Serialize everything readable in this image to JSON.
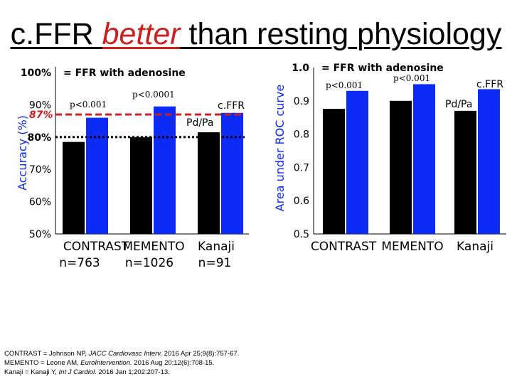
{
  "title": {
    "prefix": "c.FFR ",
    "emphasis": "better",
    "suffix": " than resting physiology",
    "emphasis_color": "#cc1f1f"
  },
  "chart_data": [
    {
      "type": "bar",
      "ylabel": "Accuracy (%)",
      "ylim": [
        50,
        100
      ],
      "yticks": [
        {
          "v": 100,
          "label": "100%"
        },
        {
          "v": 90,
          "label": "90%"
        },
        {
          "v": 80,
          "label": "80%"
        },
        {
          "v": 70,
          "label": "70%"
        },
        {
          "v": 60,
          "label": "60%"
        },
        {
          "v": 50,
          "label": "50%"
        }
      ],
      "reference_label": "= FFR with adenosine",
      "categories": [
        "CONTRAST",
        "MEMENTO",
        "Kanaji"
      ],
      "category_ns": [
        "n=763",
        "n=1026",
        "n=91"
      ],
      "series": [
        {
          "name": "Pd/Pa",
          "color": "#000000",
          "values": [
            78.5,
            80,
            81.5
          ]
        },
        {
          "name": "c.FFR",
          "color": "#0d2bf5",
          "values": [
            86,
            89.5,
            87.5
          ]
        }
      ],
      "pvalues": [
        "p<0.001",
        "p<0.0001"
      ],
      "reference_lines": [
        {
          "label": "87%",
          "value": 87,
          "color": "#cc1f1f",
          "style": "dashed"
        },
        {
          "label": "80%",
          "value": 80,
          "color": "#000000",
          "style": "dotted"
        }
      ]
    },
    {
      "type": "bar",
      "ylabel": "Area under ROC curve",
      "ylim": [
        0.5,
        1.0
      ],
      "yticks": [
        {
          "v": 1.0,
          "label": "1.0"
        },
        {
          "v": 0.9,
          "label": "0.9"
        },
        {
          "v": 0.8,
          "label": "0.8"
        },
        {
          "v": 0.7,
          "label": "0.7"
        },
        {
          "v": 0.6,
          "label": "0.6"
        },
        {
          "v": 0.5,
          "label": "0.5"
        }
      ],
      "reference_label": "= FFR with adenosine",
      "categories": [
        "CONTRAST",
        "MEMENTO",
        "Kanaji"
      ],
      "series": [
        {
          "name": "Pd/Pa",
          "color": "#000000",
          "values": [
            0.876,
            0.9,
            0.87
          ]
        },
        {
          "name": "c.FFR",
          "color": "#0d2bf5",
          "values": [
            0.93,
            0.95,
            0.935
          ]
        }
      ],
      "pvalues": [
        "p<0.001",
        "p<0.001"
      ]
    }
  ],
  "references": [
    {
      "text1": "CONTRAST = Johnson NP, ",
      "journal": "JACC Cardiovasc Interv.",
      "text2": " 2016 Apr 25;9(8):757-67."
    },
    {
      "text1": "MEMENTO = Leone AM, ",
      "journal": "EuroIntervention.",
      "text2": " 2016 Aug 20;12(6):708-15."
    },
    {
      "text1": "Kanaji = Kanaji Y, ",
      "journal": "Int J Cardiol.",
      "text2": " 2016 Jan 1;202:207-13."
    }
  ]
}
